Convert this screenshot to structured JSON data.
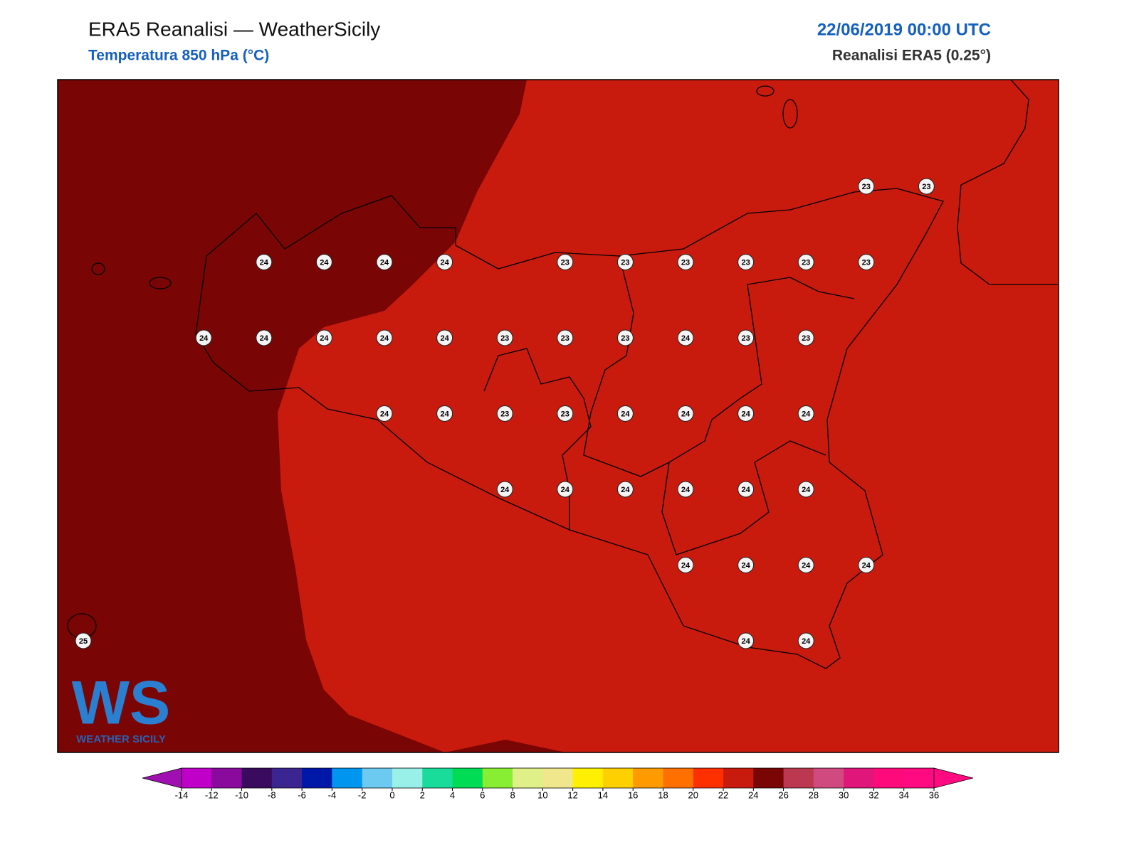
{
  "header": {
    "title": "ERA5 Reanalisi — WeatherSicily",
    "subtitle": "Temperatura 850 hPa (°C)",
    "date": "22/06/2019 00:00 UTC",
    "source": "Reanalisi ERA5 (0.25°)"
  },
  "map": {
    "points": [
      [
        null,
        null,
        null,
        null,
        null,
        null,
        null,
        null,
        null,
        null,
        null,
        null,
        null,
        23,
        23
      ],
      [
        null,
        null,
        null,
        24,
        24,
        24,
        24,
        null,
        23,
        23,
        23,
        23,
        23,
        23,
        null
      ],
      [
        null,
        null,
        24,
        24,
        24,
        24,
        24,
        23,
        23,
        23,
        24,
        23,
        23,
        null,
        null
      ],
      [
        null,
        null,
        null,
        null,
        null,
        24,
        24,
        23,
        23,
        24,
        24,
        24,
        24,
        null,
        null
      ],
      [
        null,
        null,
        null,
        null,
        null,
        null,
        null,
        24,
        24,
        24,
        24,
        24,
        24,
        null,
        null
      ],
      [
        null,
        null,
        null,
        null,
        null,
        null,
        null,
        null,
        null,
        null,
        24,
        24,
        24,
        24,
        null
      ],
      [
        25,
        null,
        null,
        null,
        null,
        null,
        null,
        null,
        null,
        null,
        null,
        24,
        24,
        null,
        null
      ]
    ]
  },
  "colorbar": {
    "ticks": [
      -14,
      -12,
      -10,
      -8,
      -6,
      -4,
      -2,
      0,
      2,
      4,
      6,
      8,
      10,
      12,
      14,
      16,
      18,
      20,
      22,
      24,
      26,
      28,
      30,
      32,
      34,
      36
    ],
    "colors": [
      "#c000c8",
      "#8a0a9e",
      "#3a0a5e",
      "#3b2590",
      "#0018a8",
      "#0096f0",
      "#6cc9f0",
      "#98f0e8",
      "#1adc9a",
      "#00dd55",
      "#88ee33",
      "#dff088",
      "#f0e68c",
      "#ffef00",
      "#ffd000",
      "#ff9a00",
      "#ff7000",
      "#ff3000",
      "#c81b0e",
      "#7a0505",
      "#bc3850",
      "#d04a80",
      "#e0167a",
      "#ff0a7a",
      "#ff0a80"
    ],
    "extend_colors": [
      "#a010b0",
      "#ff0a80"
    ]
  },
  "logo": {
    "text": "WS",
    "caption": "WEATHER SICILY"
  }
}
